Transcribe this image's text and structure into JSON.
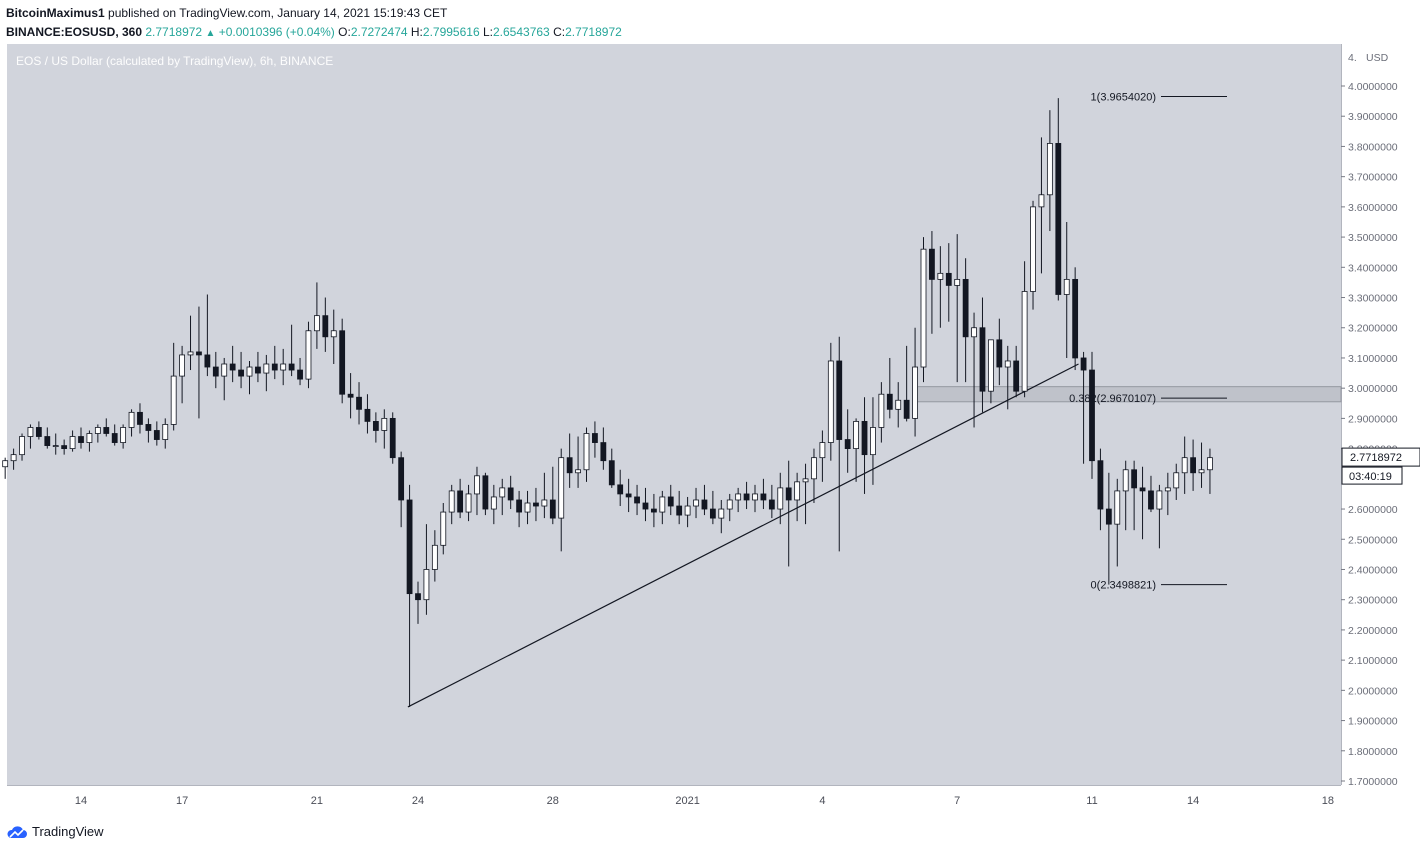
{
  "header": {
    "author": "BitcoinMaximus1",
    "published": "published on TradingView.com, January 14, 2021 15:19:43 CET",
    "symbol": "BINANCE:EOSUSD, 360",
    "last": "2.7718972",
    "change": "+0.0010396 (+0.04%)",
    "o_label": "O:",
    "o": "2.7272474",
    "h_label": "H:",
    "h": "2.7995616",
    "l_label": "L:",
    "l": "2.6543763",
    "c_label": "C:",
    "c": "2.7718972"
  },
  "chart_title": "EOS / US Dollar (calculated by TradingView), 6h, BINANCE",
  "footer": {
    "brand": "TradingView"
  },
  "colors": {
    "plot_bg": "#d1d4dc",
    "up": "#ffffff",
    "down": "#131722",
    "accent": "#26a69a"
  },
  "chart_data": {
    "type": "candlestick",
    "x_axis_labels": [
      "14",
      "17",
      "21",
      "24",
      "28",
      "2021",
      "4",
      "7",
      "11",
      "14",
      "18"
    ],
    "y_axis": {
      "currency": "USD",
      "top_label": "4.",
      "ylim": [
        1.68,
        4.08
      ],
      "ticks": [
        "4.0000000",
        "3.9000000",
        "3.8000000",
        "3.7000000",
        "3.6000000",
        "3.5000000",
        "3.4000000",
        "3.3000000",
        "3.2000000",
        "3.1000000",
        "3.0000000",
        "2.9000000",
        "2.8000000",
        "2.6000000",
        "2.5000000",
        "2.4000000",
        "2.3000000",
        "2.2000000",
        "2.1000000",
        "2.0000000",
        "1.9000000",
        "1.8000000",
        "1.7000000"
      ]
    },
    "price_label": "2.7718972",
    "countdown": "03:40:19",
    "fib_levels": [
      {
        "label": "1(3.9654020)",
        "value": 3.965402
      },
      {
        "label": "0.382(2.9670107)",
        "value": 2.9670107
      },
      {
        "label": "0(2.3498821)",
        "value": 2.3498821
      }
    ],
    "fib_zone": [
      2.955,
      3.005
    ],
    "trendline": [
      [
        23.7,
        1.945
      ],
      [
        43.6,
        3.08
      ]
    ],
    "candles": [
      [
        11.0,
        2.7,
        2.75,
        2.67,
        2.74
      ],
      [
        11.25,
        2.74,
        2.77,
        2.7,
        2.75
      ],
      [
        11.5,
        2.75,
        2.78,
        2.71,
        2.74
      ],
      [
        11.75,
        2.74,
        2.77,
        2.7,
        2.76
      ],
      [
        12.0,
        2.76,
        2.8,
        2.73,
        2.78
      ],
      [
        12.25,
        2.78,
        2.85,
        2.76,
        2.84
      ],
      [
        12.5,
        2.84,
        2.88,
        2.8,
        2.87
      ],
      [
        12.75,
        2.87,
        2.89,
        2.83,
        2.84
      ],
      [
        13.0,
        2.84,
        2.87,
        2.8,
        2.81
      ],
      [
        13.25,
        2.81,
        2.85,
        2.78,
        2.81
      ],
      [
        13.5,
        2.81,
        2.83,
        2.78,
        2.8
      ],
      [
        13.75,
        2.8,
        2.86,
        2.79,
        2.84
      ],
      [
        14.0,
        2.84,
        2.87,
        2.8,
        2.82
      ],
      [
        14.25,
        2.82,
        2.86,
        2.79,
        2.85
      ],
      [
        14.5,
        2.85,
        2.88,
        2.82,
        2.87
      ],
      [
        14.75,
        2.87,
        2.9,
        2.84,
        2.85
      ],
      [
        15.0,
        2.85,
        2.88,
        2.81,
        2.82
      ],
      [
        15.25,
        2.82,
        2.88,
        2.8,
        2.87
      ],
      [
        15.5,
        2.87,
        2.93,
        2.84,
        2.92
      ],
      [
        15.75,
        2.92,
        2.95,
        2.85,
        2.88
      ],
      [
        16.0,
        2.88,
        2.9,
        2.82,
        2.86
      ],
      [
        16.25,
        2.86,
        2.89,
        2.81,
        2.83
      ],
      [
        16.5,
        2.83,
        2.9,
        2.8,
        2.88
      ],
      [
        16.75,
        2.88,
        3.15,
        2.86,
        3.04
      ],
      [
        17.0,
        3.04,
        3.14,
        2.95,
        3.11
      ],
      [
        17.25,
        3.11,
        3.24,
        3.06,
        3.12
      ],
      [
        17.5,
        3.12,
        3.27,
        2.9,
        3.11
      ],
      [
        17.75,
        3.11,
        3.31,
        3.04,
        3.07
      ],
      [
        18.0,
        3.07,
        3.12,
        3.0,
        3.04
      ],
      [
        18.25,
        3.04,
        3.1,
        2.96,
        3.08
      ],
      [
        18.5,
        3.08,
        3.14,
        3.02,
        3.06
      ],
      [
        18.75,
        3.06,
        3.12,
        3.0,
        3.04
      ],
      [
        19.0,
        3.04,
        3.09,
        2.98,
        3.07
      ],
      [
        19.25,
        3.07,
        3.12,
        3.02,
        3.05
      ],
      [
        19.5,
        3.05,
        3.11,
        2.99,
        3.08
      ],
      [
        19.75,
        3.08,
        3.14,
        3.03,
        3.06
      ],
      [
        20.0,
        3.06,
        3.13,
        3.01,
        3.08
      ],
      [
        20.25,
        3.08,
        3.21,
        3.04,
        3.06
      ],
      [
        20.5,
        3.06,
        3.1,
        3.01,
        3.03
      ],
      [
        20.75,
        3.03,
        3.22,
        3.0,
        3.19
      ],
      [
        21.0,
        3.19,
        3.35,
        3.13,
        3.24
      ],
      [
        21.25,
        3.24,
        3.3,
        3.12,
        3.17
      ],
      [
        21.5,
        3.17,
        3.26,
        3.08,
        3.19
      ],
      [
        21.75,
        3.19,
        3.23,
        2.95,
        2.98
      ],
      [
        22.0,
        2.98,
        3.05,
        2.9,
        2.97
      ],
      [
        22.25,
        2.97,
        3.02,
        2.88,
        2.93
      ],
      [
        22.5,
        2.93,
        2.98,
        2.85,
        2.89
      ],
      [
        22.75,
        2.89,
        2.92,
        2.82,
        2.86
      ],
      [
        23.0,
        2.86,
        2.93,
        2.8,
        2.9
      ],
      [
        23.25,
        2.9,
        2.92,
        2.75,
        2.77
      ],
      [
        23.5,
        2.77,
        2.79,
        2.54,
        2.63
      ],
      [
        23.75,
        2.63,
        2.68,
        1.945,
        2.32
      ],
      [
        24.0,
        2.32,
        2.36,
        2.22,
        2.3
      ],
      [
        24.25,
        2.3,
        2.55,
        2.25,
        2.4
      ],
      [
        24.5,
        2.4,
        2.53,
        2.36,
        2.48
      ],
      [
        24.75,
        2.48,
        2.62,
        2.45,
        2.59
      ],
      [
        25.0,
        2.59,
        2.68,
        2.55,
        2.66
      ],
      [
        25.25,
        2.66,
        2.7,
        2.57,
        2.59
      ],
      [
        25.5,
        2.59,
        2.68,
        2.56,
        2.65
      ],
      [
        25.75,
        2.65,
        2.74,
        2.58,
        2.71
      ],
      [
        26.0,
        2.71,
        2.72,
        2.58,
        2.6
      ],
      [
        26.25,
        2.6,
        2.68,
        2.55,
        2.64
      ],
      [
        26.5,
        2.64,
        2.7,
        2.58,
        2.67
      ],
      [
        26.75,
        2.67,
        2.71,
        2.6,
        2.63
      ],
      [
        27.0,
        2.63,
        2.66,
        2.54,
        2.59
      ],
      [
        27.25,
        2.59,
        2.66,
        2.55,
        2.62
      ],
      [
        27.5,
        2.62,
        2.67,
        2.56,
        2.61
      ],
      [
        27.75,
        2.61,
        2.72,
        2.57,
        2.63
      ],
      [
        28.0,
        2.63,
        2.74,
        2.55,
        2.57
      ],
      [
        28.25,
        2.57,
        2.8,
        2.46,
        2.77
      ],
      [
        28.5,
        2.77,
        2.85,
        2.67,
        2.72
      ],
      [
        28.75,
        2.72,
        2.84,
        2.67,
        2.73
      ],
      [
        29.0,
        2.73,
        2.87,
        2.69,
        2.85
      ],
      [
        29.25,
        2.85,
        2.89,
        2.77,
        2.82
      ],
      [
        29.5,
        2.82,
        2.87,
        2.73,
        2.76
      ],
      [
        29.75,
        2.76,
        2.8,
        2.67,
        2.68
      ],
      [
        30.0,
        2.68,
        2.73,
        2.61,
        2.65
      ],
      [
        30.25,
        2.65,
        2.7,
        2.59,
        2.64
      ],
      [
        30.5,
        2.64,
        2.68,
        2.58,
        2.62
      ],
      [
        30.75,
        2.62,
        2.67,
        2.56,
        2.6
      ],
      [
        31.0,
        2.6,
        2.65,
        2.54,
        2.59
      ],
      [
        31.25,
        2.59,
        2.66,
        2.55,
        2.64
      ],
      [
        31.5,
        2.64,
        2.68,
        2.58,
        2.61
      ],
      [
        31.75,
        2.61,
        2.66,
        2.55,
        2.58
      ],
      [
        32.0,
        2.58,
        2.64,
        2.54,
        2.61
      ],
      [
        32.25,
        2.61,
        2.67,
        2.57,
        2.63
      ],
      [
        32.5,
        2.63,
        2.68,
        2.58,
        2.6
      ],
      [
        32.75,
        2.6,
        2.66,
        2.55,
        2.57
      ],
      [
        33.0,
        2.57,
        2.63,
        2.52,
        2.6
      ],
      [
        33.25,
        2.6,
        2.65,
        2.56,
        2.63
      ],
      [
        33.5,
        2.63,
        2.67,
        2.59,
        2.65
      ],
      [
        33.75,
        2.65,
        2.69,
        2.6,
        2.63
      ],
      [
        34.0,
        2.63,
        2.68,
        2.59,
        2.65
      ],
      [
        34.25,
        2.65,
        2.7,
        2.6,
        2.63
      ],
      [
        34.5,
        2.63,
        2.68,
        2.57,
        2.6
      ],
      [
        34.75,
        2.6,
        2.72,
        2.55,
        2.67
      ],
      [
        35.0,
        2.67,
        2.76,
        2.41,
        2.63
      ],
      [
        35.25,
        2.63,
        2.72,
        2.56,
        2.69
      ],
      [
        35.5,
        2.69,
        2.75,
        2.55,
        2.7
      ],
      [
        35.75,
        2.7,
        2.8,
        2.62,
        2.77
      ],
      [
        36.0,
        2.77,
        2.86,
        2.69,
        2.82
      ],
      [
        36.25,
        2.82,
        3.15,
        2.76,
        3.09
      ],
      [
        36.5,
        3.09,
        3.17,
        2.46,
        2.83
      ],
      [
        36.75,
        2.83,
        2.93,
        2.72,
        2.8
      ],
      [
        37.0,
        2.8,
        2.9,
        2.69,
        2.89
      ],
      [
        37.25,
        2.89,
        2.97,
        2.65,
        2.78
      ],
      [
        37.5,
        2.78,
        2.97,
        2.68,
        2.87
      ],
      [
        37.75,
        2.87,
        3.02,
        2.82,
        2.98
      ],
      [
        38.0,
        2.98,
        3.1,
        2.9,
        2.93
      ],
      [
        38.25,
        2.93,
        3.02,
        2.87,
        2.96
      ],
      [
        38.5,
        2.96,
        3.14,
        2.89,
        2.9
      ],
      [
        38.75,
        2.9,
        3.2,
        2.84,
        3.07
      ],
      [
        39.0,
        3.07,
        3.5,
        3.02,
        3.46
      ],
      [
        39.25,
        3.46,
        3.52,
        3.18,
        3.36
      ],
      [
        39.5,
        3.36,
        3.47,
        3.2,
        3.38
      ],
      [
        39.75,
        3.38,
        3.48,
        3.22,
        3.34
      ],
      [
        40.0,
        3.34,
        3.51,
        3.02,
        3.36
      ],
      [
        40.25,
        3.36,
        3.43,
        3.02,
        3.17
      ],
      [
        40.5,
        3.17,
        3.25,
        2.87,
        3.2
      ],
      [
        40.75,
        3.2,
        3.3,
        2.92,
        2.99
      ],
      [
        41.0,
        2.99,
        3.16,
        2.95,
        3.16
      ],
      [
        41.25,
        3.16,
        3.23,
        3.01,
        3.07
      ],
      [
        41.5,
        3.07,
        3.14,
        2.93,
        3.09
      ],
      [
        41.75,
        3.09,
        3.14,
        2.97,
        2.99
      ],
      [
        42.0,
        2.99,
        3.42,
        2.97,
        3.32
      ],
      [
        42.25,
        3.32,
        3.62,
        3.26,
        3.6
      ],
      [
        42.5,
        3.6,
        3.83,
        3.38,
        3.64
      ],
      [
        42.75,
        3.64,
        3.92,
        3.52,
        3.81
      ],
      [
        43.0,
        3.81,
        3.96,
        3.29,
        3.31
      ],
      [
        43.25,
        3.31,
        3.55,
        3.1,
        3.36
      ],
      [
        43.5,
        3.36,
        3.4,
        3.06,
        3.1
      ],
      [
        43.75,
        3.1,
        3.12,
        2.75,
        3.06
      ],
      [
        44.0,
        3.06,
        3.12,
        2.7,
        2.76
      ],
      [
        44.25,
        2.76,
        2.8,
        2.53,
        2.6
      ],
      [
        44.5,
        2.6,
        2.72,
        2.35,
        2.55
      ],
      [
        44.75,
        2.55,
        2.7,
        2.41,
        2.66
      ],
      [
        45.0,
        2.66,
        2.76,
        2.53,
        2.73
      ],
      [
        45.25,
        2.73,
        2.76,
        2.53,
        2.67
      ],
      [
        45.5,
        2.67,
        2.74,
        2.5,
        2.66
      ],
      [
        45.75,
        2.66,
        2.71,
        2.59,
        2.6
      ],
      [
        46.0,
        2.6,
        2.68,
        2.47,
        2.66
      ],
      [
        46.25,
        2.66,
        2.72,
        2.58,
        2.67
      ],
      [
        46.5,
        2.67,
        2.75,
        2.63,
        2.72
      ],
      [
        46.75,
        2.72,
        2.84,
        2.65,
        2.77
      ],
      [
        47.0,
        2.77,
        2.83,
        2.66,
        2.72
      ],
      [
        47.25,
        2.72,
        2.82,
        2.67,
        2.73
      ],
      [
        47.5,
        2.73,
        2.8,
        2.65,
        2.77
      ]
    ]
  }
}
